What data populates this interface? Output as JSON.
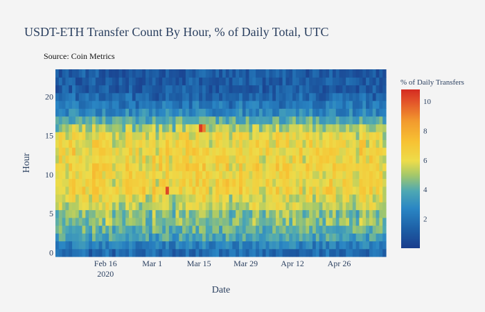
{
  "chart_data": {
    "type": "heatmap",
    "title": "USDT-ETH Transfer Count By Hour, % of Daily Total, UTC",
    "subtitle": "Source: Coin Metrics",
    "xlabel": "Date",
    "ylabel": "Hour",
    "colorbar_title": "% of Daily Transfers",
    "x_range": [
      "2020-02-01",
      "2020-05-10"
    ],
    "x_ticks": [
      {
        "date": "2020-02-16",
        "label": "Feb 16",
        "sublabel": "2020"
      },
      {
        "date": "2020-03-01",
        "label": "Mar 1",
        "sublabel": ""
      },
      {
        "date": "2020-03-15",
        "label": "Mar 15",
        "sublabel": ""
      },
      {
        "date": "2020-03-29",
        "label": "Mar 29",
        "sublabel": ""
      },
      {
        "date": "2020-04-12",
        "label": "Apr 12",
        "sublabel": ""
      },
      {
        "date": "2020-04-26",
        "label": "Apr 26",
        "sublabel": ""
      }
    ],
    "y_range": [
      -0.5,
      23.5
    ],
    "y_ticks": [
      0,
      5,
      10,
      15,
      20
    ],
    "colorscale_range": [
      0,
      10.8
    ],
    "colorbar_ticks": [
      2,
      4,
      6,
      8,
      10
    ],
    "colorscale": [
      [
        0.0,
        "#1a3d8c"
      ],
      [
        0.12,
        "#1d5fa6"
      ],
      [
        0.25,
        "#2a86c4"
      ],
      [
        0.36,
        "#4ea8b3"
      ],
      [
        0.46,
        "#a4c86a"
      ],
      [
        0.55,
        "#eddc4a"
      ],
      [
        0.67,
        "#f7c233"
      ],
      [
        0.8,
        "#f29a2e"
      ],
      [
        0.92,
        "#e3552a"
      ],
      [
        1.0,
        "#d42b21"
      ]
    ],
    "hourly_profile_pct": [
      1.7,
      2.5,
      3.6,
      4.1,
      4.6,
      4.6,
      5.4,
      5.7,
      6.3,
      6.2,
      6.1,
      6.3,
      6.2,
      6.3,
      6.1,
      5.9,
      5.0,
      4.0,
      2.7,
      2.1,
      1.5,
      1.2,
      1.1,
      1.0
    ],
    "highlights": [
      {
        "date": "2020-03-05",
        "hour": 8,
        "value": 10.2
      },
      {
        "date": "2020-03-15",
        "hour": 16,
        "value": 10.5
      },
      {
        "date": "2020-03-16",
        "hour": 16,
        "value": 9.2
      }
    ],
    "grid": false
  }
}
